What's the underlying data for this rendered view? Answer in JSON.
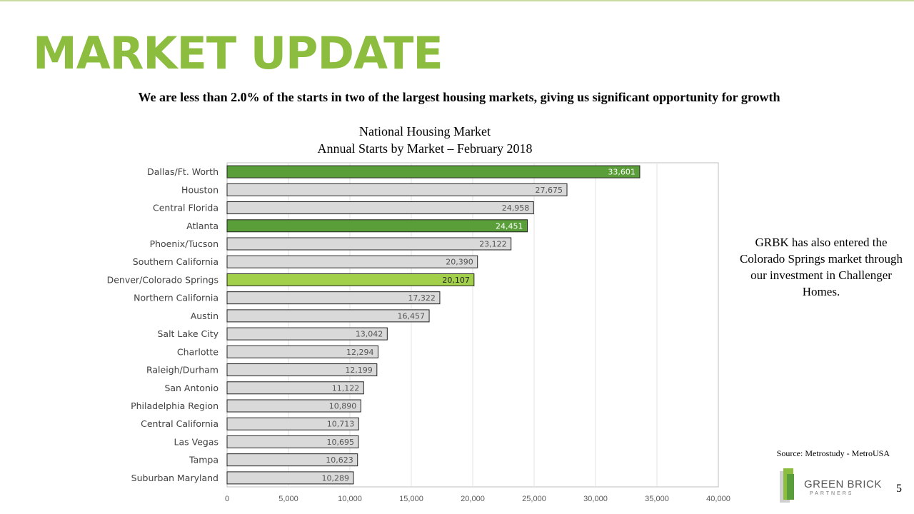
{
  "slide": {
    "title": "MARKET UPDATE",
    "subtitle": "We are less than 2.0% of the starts in two of the largest housing markets, giving us significant opportunity for growth",
    "side_note": "GRBK has also entered the Colorado Springs market through our investment in Challenger Homes.",
    "source": "Source: Metrostudy - MetroUSA",
    "page_number": "5",
    "logo": {
      "name": "GREEN BRICK",
      "sub": "PARTNERS"
    },
    "colors": {
      "accent": "#8dbd3f",
      "highlight_dark": "#5a9e3a",
      "highlight_light": "#a3d04a",
      "bar_default": "#d9d9d9"
    }
  },
  "chart_data": {
    "type": "bar",
    "orientation": "horizontal",
    "title": "National Housing Market",
    "subtitle": "Annual Starts by Market – February 2018",
    "xlim": [
      0,
      40000
    ],
    "x_ticks": [
      "0",
      "5,000",
      "10,000",
      "15,000",
      "20,000",
      "25,000",
      "30,000",
      "35,000",
      "40,000"
    ],
    "grid": true,
    "categories": [
      "Dallas/Ft. Worth",
      "Houston",
      "Central Florida",
      "Atlanta",
      "Phoenix/Tucson",
      "Southern California",
      "Denver/Colorado Springs",
      "Northern California",
      "Austin",
      "Salt Lake City",
      "Charlotte",
      "Raleigh/Durham",
      "San Antonio",
      "Philadelphia Region",
      "Central California",
      "Las Vegas",
      "Tampa",
      "Suburban Maryland"
    ],
    "values": [
      33601,
      27675,
      24958,
      24451,
      23122,
      20390,
      20107,
      17322,
      16457,
      13042,
      12294,
      12199,
      11122,
      10890,
      10713,
      10695,
      10623,
      10289
    ],
    "labels": [
      "33,601",
      "27,675",
      "24,958",
      "24,451",
      "23,122",
      "20,390",
      "20,107",
      "17,322",
      "16,457",
      "13,042",
      "12,294",
      "12,199",
      "11,122",
      "10,890",
      "10,713",
      "10,695",
      "10,623",
      "10,289"
    ],
    "highlights": [
      "dark",
      "none",
      "none",
      "dark",
      "none",
      "none",
      "light",
      "none",
      "none",
      "none",
      "none",
      "none",
      "none",
      "none",
      "none",
      "none",
      "none",
      "none"
    ]
  }
}
